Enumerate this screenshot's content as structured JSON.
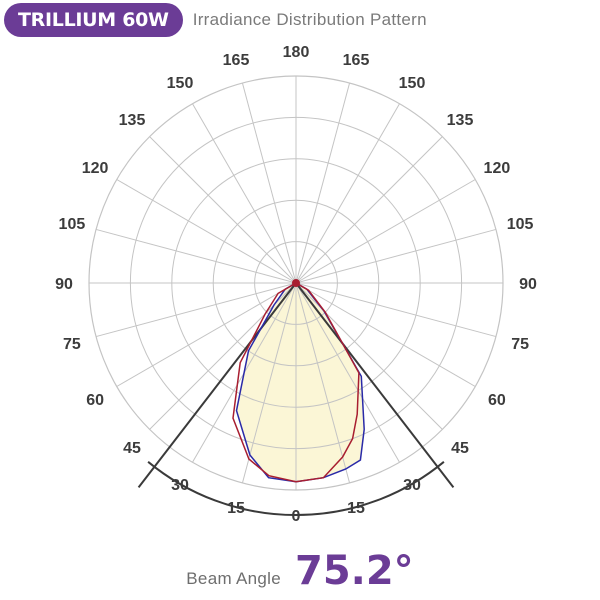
{
  "header": {
    "product": "TRILLIUM 60W",
    "subtitle": "Irradiance Distribution Pattern"
  },
  "beam": {
    "label": "Beam Angle",
    "value": "75.2°"
  },
  "colors": {
    "brand": "#6b3c96",
    "grid": "#c4c4c4",
    "fill": "#fbf6d6",
    "series_a": "#2a2aa8",
    "series_b": "#a81e30",
    "cone": "#3a3a3a"
  },
  "chart_data": {
    "type": "polar",
    "angle_ticks_left": [
      "0",
      "15",
      "30",
      "45",
      "60",
      "75",
      "90",
      "105",
      "120",
      "135",
      "150",
      "165",
      "180"
    ],
    "angle_ticks_right": [
      "15",
      "30",
      "45",
      "60",
      "75",
      "90",
      "105",
      "120",
      "135",
      "150",
      "165"
    ],
    "angle_values": [
      0,
      15,
      30,
      45,
      60,
      75,
      90,
      105,
      120,
      135,
      150,
      165,
      180
    ],
    "rlim": [
      0,
      1
    ],
    "grid": true,
    "beam_angle_deg": 75.2,
    "series": [
      {
        "color": "#2a2aa8",
        "angles": [
          -90,
          -60,
          -45,
          -35,
          -25,
          -15,
          -8,
          0,
          8,
          15,
          20,
          25,
          35,
          45,
          60,
          90
        ],
        "values": [
          0,
          0.06,
          0.15,
          0.4,
          0.68,
          0.86,
          0.95,
          0.96,
          0.95,
          0.93,
          0.91,
          0.78,
          0.55,
          0.19,
          0.06,
          0
        ]
      },
      {
        "color": "#a81e30",
        "angles": [
          -90,
          -60,
          -45,
          -35,
          -25,
          -15,
          -8,
          0,
          8,
          15,
          20,
          25,
          35,
          45,
          60,
          90
        ],
        "values": [
          0,
          0.1,
          0.21,
          0.47,
          0.72,
          0.88,
          0.94,
          0.96,
          0.95,
          0.87,
          0.8,
          0.7,
          0.53,
          0.2,
          0.07,
          0
        ]
      }
    ]
  }
}
